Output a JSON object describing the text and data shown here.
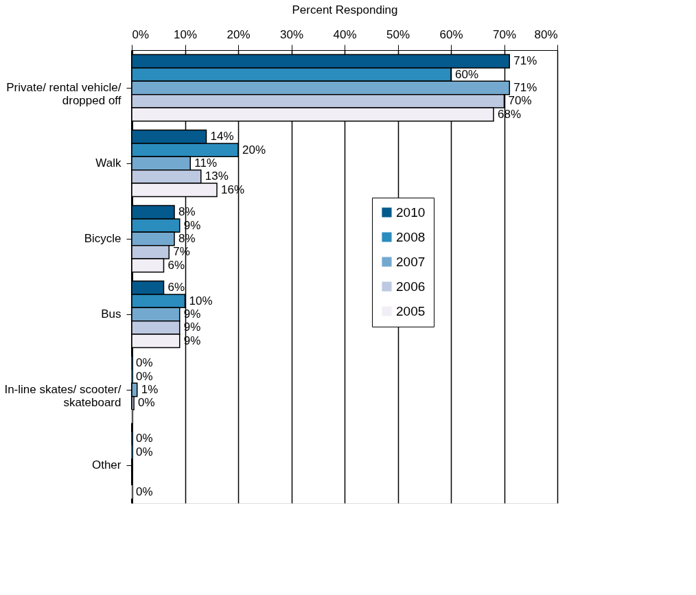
{
  "chart_data": {
    "type": "bar",
    "orientation": "horizontal",
    "xlabel": "Percent Responding",
    "categories": [
      "Private/ rental vehicle/\ndropped off",
      "Walk",
      "Bicycle",
      "Bus",
      "In-line skates/ scooter/\nskateboard",
      "Other"
    ],
    "series": [
      {
        "name": "2010",
        "color": "#045a8d",
        "values": [
          71,
          14,
          8,
          6,
          0,
          0
        ],
        "value_labels": [
          "71%",
          "14%",
          "8%",
          "6%",
          "0%",
          "0%"
        ]
      },
      {
        "name": "2008",
        "color": "#2b8cbe",
        "values": [
          60,
          20,
          9,
          10,
          0,
          0
        ],
        "value_labels": [
          "60%",
          "20%",
          "9%",
          "10%",
          "0%",
          "0%"
        ]
      },
      {
        "name": "2007",
        "color": "#74a9cf",
        "values": [
          71,
          11,
          8,
          9,
          1,
          null
        ],
        "value_labels": [
          "71%",
          "11%",
          "8%",
          "9%",
          "1%",
          null
        ]
      },
      {
        "name": "2006",
        "color": "#bdc9e1",
        "values": [
          70,
          13,
          7,
          9,
          0.4,
          null
        ],
        "value_labels": [
          "70%",
          "13%",
          "7%",
          "9%",
          "0%",
          null
        ]
      },
      {
        "name": "2005",
        "color": "#f1eef6",
        "values": [
          68,
          16,
          6,
          9,
          0,
          0
        ],
        "value_labels": [
          "68%",
          "16%",
          "6%",
          "9%",
          null,
          "0%"
        ]
      }
    ],
    "xlim": [
      0,
      80
    ],
    "xticks": [
      {
        "value": 0,
        "label": "0%"
      },
      {
        "value": 10,
        "label": "10%"
      },
      {
        "value": 20,
        "label": "20%"
      },
      {
        "value": 30,
        "label": "30%"
      },
      {
        "value": 40,
        "label": "40%"
      },
      {
        "value": 50,
        "label": "50%"
      },
      {
        "value": 60,
        "label": "60%"
      },
      {
        "value": 70,
        "label": "70%"
      },
      {
        "value": 80,
        "label": "80%"
      }
    ],
    "grid": "x",
    "legend": "right"
  }
}
